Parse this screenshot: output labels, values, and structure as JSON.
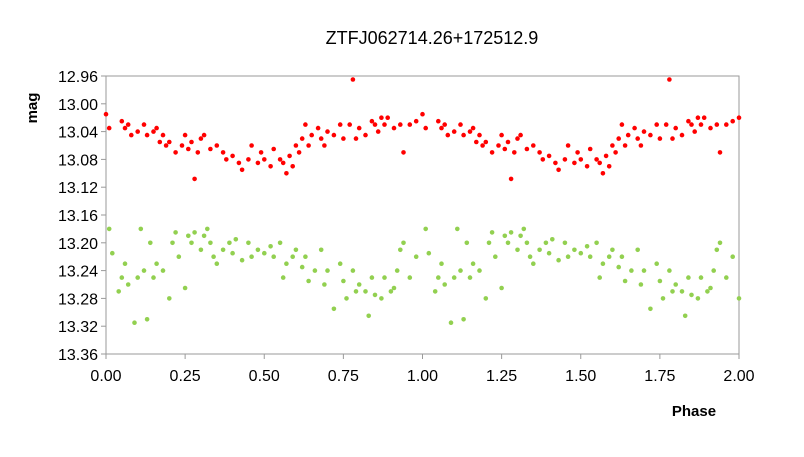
{
  "chart_data": {
    "type": "scatter",
    "title": "ZTFJ062714.26+172512.9",
    "xlabel": "Phase",
    "ylabel": "mag",
    "xlim": [
      0.0,
      2.0
    ],
    "ylim": [
      12.96,
      13.36
    ],
    "y_inverted": true,
    "grid": false,
    "legend": "none",
    "x_ticks": [
      "0.00",
      "0.25",
      "0.50",
      "0.75",
      "1.00",
      "1.25",
      "1.50",
      "1.75",
      "2.00"
    ],
    "y_ticks": [
      "12.96",
      "13.00",
      "13.04",
      "13.08",
      "13.12",
      "13.16",
      "13.20",
      "13.24",
      "13.28",
      "13.32",
      "13.36"
    ],
    "x_tick_values": [
      0.0,
      0.25,
      0.5,
      0.75,
      1.0,
      1.25,
      1.5,
      1.75,
      2.0
    ],
    "y_tick_values": [
      12.96,
      13.0,
      13.04,
      13.08,
      13.12,
      13.16,
      13.2,
      13.24,
      13.28,
      13.32,
      13.36
    ],
    "series": [
      {
        "color": "#ff0000",
        "marker": "circle",
        "points": [
          [
            0.0,
            13.015
          ],
          [
            0.01,
            13.035
          ],
          [
            0.05,
            13.025
          ],
          [
            0.06,
            13.035
          ],
          [
            0.07,
            13.03
          ],
          [
            0.08,
            13.045
          ],
          [
            0.1,
            13.04
          ],
          [
            0.12,
            13.03
          ],
          [
            0.13,
            13.045
          ],
          [
            0.15,
            13.04
          ],
          [
            0.16,
            13.035
          ],
          [
            0.17,
            13.055
          ],
          [
            0.18,
            13.045
          ],
          [
            0.19,
            13.06
          ],
          [
            0.2,
            13.055
          ],
          [
            0.22,
            13.07
          ],
          [
            0.24,
            13.06
          ],
          [
            0.25,
            13.045
          ],
          [
            0.26,
            13.065
          ],
          [
            0.27,
            13.055
          ],
          [
            0.28,
            13.108
          ],
          [
            0.29,
            13.07
          ],
          [
            0.3,
            13.05
          ],
          [
            0.31,
            13.045
          ],
          [
            0.33,
            13.065
          ],
          [
            0.35,
            13.06
          ],
          [
            0.37,
            13.07
          ],
          [
            0.38,
            13.08
          ],
          [
            0.4,
            13.075
          ],
          [
            0.42,
            13.085
          ],
          [
            0.43,
            13.095
          ],
          [
            0.45,
            13.08
          ],
          [
            0.46,
            13.06
          ],
          [
            0.48,
            13.085
          ],
          [
            0.49,
            13.07
          ],
          [
            0.5,
            13.08
          ],
          [
            0.52,
            13.09
          ],
          [
            0.53,
            13.065
          ],
          [
            0.55,
            13.08
          ],
          [
            0.56,
            13.085
          ],
          [
            0.57,
            13.1
          ],
          [
            0.58,
            13.075
          ],
          [
            0.59,
            13.09
          ],
          [
            0.6,
            13.06
          ],
          [
            0.61,
            13.07
          ],
          [
            0.62,
            13.05
          ],
          [
            0.63,
            13.03
          ],
          [
            0.64,
            13.06
          ],
          [
            0.65,
            13.045
          ],
          [
            0.67,
            13.035
          ],
          [
            0.68,
            13.05
          ],
          [
            0.69,
            13.06
          ],
          [
            0.7,
            13.04
          ],
          [
            0.72,
            13.045
          ],
          [
            0.74,
            13.03
          ],
          [
            0.75,
            13.05
          ],
          [
            0.77,
            13.03
          ],
          [
            0.78,
            12.965
          ],
          [
            0.79,
            13.05
          ],
          [
            0.8,
            13.035
          ],
          [
            0.82,
            13.045
          ],
          [
            0.84,
            13.025
          ],
          [
            0.85,
            13.03
          ],
          [
            0.86,
            13.04
          ],
          [
            0.87,
            13.02
          ],
          [
            0.88,
            13.03
          ],
          [
            0.89,
            13.02
          ],
          [
            0.91,
            13.035
          ],
          [
            0.93,
            13.03
          ],
          [
            0.94,
            13.07
          ],
          [
            0.96,
            13.03
          ],
          [
            0.98,
            13.025
          ],
          [
            1.0,
            13.015
          ],
          [
            1.01,
            13.035
          ],
          [
            1.05,
            13.025
          ],
          [
            1.06,
            13.035
          ],
          [
            1.07,
            13.03
          ],
          [
            1.08,
            13.045
          ],
          [
            1.1,
            13.04
          ],
          [
            1.12,
            13.03
          ],
          [
            1.13,
            13.045
          ],
          [
            1.15,
            13.04
          ],
          [
            1.16,
            13.035
          ],
          [
            1.17,
            13.055
          ],
          [
            1.18,
            13.045
          ],
          [
            1.19,
            13.06
          ],
          [
            1.2,
            13.055
          ],
          [
            1.22,
            13.07
          ],
          [
            1.24,
            13.06
          ],
          [
            1.25,
            13.045
          ],
          [
            1.26,
            13.065
          ],
          [
            1.27,
            13.055
          ],
          [
            1.28,
            13.108
          ],
          [
            1.29,
            13.07
          ],
          [
            1.3,
            13.05
          ],
          [
            1.31,
            13.045
          ],
          [
            1.33,
            13.065
          ],
          [
            1.35,
            13.06
          ],
          [
            1.37,
            13.07
          ],
          [
            1.38,
            13.08
          ],
          [
            1.4,
            13.075
          ],
          [
            1.42,
            13.085
          ],
          [
            1.43,
            13.095
          ],
          [
            1.45,
            13.08
          ],
          [
            1.46,
            13.06
          ],
          [
            1.48,
            13.085
          ],
          [
            1.49,
            13.07
          ],
          [
            1.5,
            13.08
          ],
          [
            1.52,
            13.09
          ],
          [
            1.53,
            13.065
          ],
          [
            1.55,
            13.08
          ],
          [
            1.56,
            13.085
          ],
          [
            1.57,
            13.1
          ],
          [
            1.58,
            13.075
          ],
          [
            1.59,
            13.09
          ],
          [
            1.6,
            13.06
          ],
          [
            1.61,
            13.07
          ],
          [
            1.62,
            13.05
          ],
          [
            1.63,
            13.03
          ],
          [
            1.64,
            13.06
          ],
          [
            1.65,
            13.045
          ],
          [
            1.67,
            13.035
          ],
          [
            1.68,
            13.05
          ],
          [
            1.69,
            13.06
          ],
          [
            1.7,
            13.04
          ],
          [
            1.72,
            13.045
          ],
          [
            1.74,
            13.03
          ],
          [
            1.75,
            13.05
          ],
          [
            1.77,
            13.03
          ],
          [
            1.78,
            12.965
          ],
          [
            1.79,
            13.05
          ],
          [
            1.8,
            13.035
          ],
          [
            1.82,
            13.045
          ],
          [
            1.84,
            13.025
          ],
          [
            1.85,
            13.03
          ],
          [
            1.86,
            13.04
          ],
          [
            1.87,
            13.02
          ],
          [
            1.88,
            13.03
          ],
          [
            1.89,
            13.02
          ],
          [
            1.91,
            13.035
          ],
          [
            1.93,
            13.03
          ],
          [
            1.94,
            13.07
          ],
          [
            1.96,
            13.03
          ],
          [
            1.98,
            13.025
          ],
          [
            2.0,
            13.02
          ]
        ]
      },
      {
        "color": "#92d050",
        "marker": "circle",
        "points": [
          [
            0.01,
            13.18
          ],
          [
            0.02,
            13.215
          ],
          [
            0.04,
            13.27
          ],
          [
            0.05,
            13.25
          ],
          [
            0.06,
            13.23
          ],
          [
            0.07,
            13.26
          ],
          [
            0.09,
            13.315
          ],
          [
            0.1,
            13.25
          ],
          [
            0.11,
            13.18
          ],
          [
            0.12,
            13.24
          ],
          [
            0.13,
            13.31
          ],
          [
            0.14,
            13.2
          ],
          [
            0.15,
            13.25
          ],
          [
            0.16,
            13.23
          ],
          [
            0.18,
            13.24
          ],
          [
            0.2,
            13.28
          ],
          [
            0.21,
            13.2
          ],
          [
            0.22,
            13.185
          ],
          [
            0.23,
            13.22
          ],
          [
            0.25,
            13.265
          ],
          [
            0.26,
            13.19
          ],
          [
            0.27,
            13.2
          ],
          [
            0.28,
            13.185
          ],
          [
            0.3,
            13.21
          ],
          [
            0.31,
            13.19
          ],
          [
            0.32,
            13.18
          ],
          [
            0.33,
            13.2
          ],
          [
            0.34,
            13.22
          ],
          [
            0.35,
            13.23
          ],
          [
            0.37,
            13.21
          ],
          [
            0.39,
            13.2
          ],
          [
            0.4,
            13.215
          ],
          [
            0.41,
            13.195
          ],
          [
            0.43,
            13.225
          ],
          [
            0.45,
            13.2
          ],
          [
            0.46,
            13.22
          ],
          [
            0.48,
            13.21
          ],
          [
            0.5,
            13.215
          ],
          [
            0.52,
            13.205
          ],
          [
            0.53,
            13.22
          ],
          [
            0.55,
            13.2
          ],
          [
            0.56,
            13.25
          ],
          [
            0.57,
            13.23
          ],
          [
            0.59,
            13.22
          ],
          [
            0.6,
            13.21
          ],
          [
            0.62,
            13.235
          ],
          [
            0.63,
            13.22
          ],
          [
            0.64,
            13.255
          ],
          [
            0.66,
            13.24
          ],
          [
            0.68,
            13.21
          ],
          [
            0.69,
            13.26
          ],
          [
            0.7,
            13.24
          ],
          [
            0.72,
            13.295
          ],
          [
            0.74,
            13.23
          ],
          [
            0.75,
            13.255
          ],
          [
            0.76,
            13.28
          ],
          [
            0.78,
            13.24
          ],
          [
            0.79,
            13.27
          ],
          [
            0.8,
            13.26
          ],
          [
            0.82,
            13.27
          ],
          [
            0.83,
            13.305
          ],
          [
            0.84,
            13.25
          ],
          [
            0.85,
            13.275
          ],
          [
            0.87,
            13.28
          ],
          [
            0.88,
            13.25
          ],
          [
            0.9,
            13.27
          ],
          [
            0.91,
            13.265
          ],
          [
            0.92,
            13.24
          ],
          [
            0.93,
            13.21
          ],
          [
            0.94,
            13.2
          ],
          [
            0.96,
            13.25
          ],
          [
            0.98,
            13.22
          ],
          [
            1.01,
            13.18
          ],
          [
            1.02,
            13.215
          ],
          [
            1.04,
            13.27
          ],
          [
            1.05,
            13.25
          ],
          [
            1.06,
            13.23
          ],
          [
            1.07,
            13.26
          ],
          [
            1.09,
            13.315
          ],
          [
            1.1,
            13.25
          ],
          [
            1.11,
            13.18
          ],
          [
            1.12,
            13.24
          ],
          [
            1.13,
            13.31
          ],
          [
            1.14,
            13.2
          ],
          [
            1.15,
            13.25
          ],
          [
            1.16,
            13.23
          ],
          [
            1.18,
            13.24
          ],
          [
            1.2,
            13.28
          ],
          [
            1.21,
            13.2
          ],
          [
            1.22,
            13.185
          ],
          [
            1.23,
            13.22
          ],
          [
            1.25,
            13.265
          ],
          [
            1.26,
            13.19
          ],
          [
            1.27,
            13.2
          ],
          [
            1.28,
            13.185
          ],
          [
            1.3,
            13.21
          ],
          [
            1.31,
            13.19
          ],
          [
            1.32,
            13.18
          ],
          [
            1.33,
            13.2
          ],
          [
            1.34,
            13.22
          ],
          [
            1.35,
            13.23
          ],
          [
            1.37,
            13.21
          ],
          [
            1.39,
            13.2
          ],
          [
            1.4,
            13.215
          ],
          [
            1.41,
            13.195
          ],
          [
            1.43,
            13.225
          ],
          [
            1.45,
            13.2
          ],
          [
            1.46,
            13.22
          ],
          [
            1.48,
            13.21
          ],
          [
            1.5,
            13.215
          ],
          [
            1.52,
            13.205
          ],
          [
            1.53,
            13.22
          ],
          [
            1.55,
            13.2
          ],
          [
            1.56,
            13.25
          ],
          [
            1.57,
            13.23
          ],
          [
            1.59,
            13.22
          ],
          [
            1.6,
            13.21
          ],
          [
            1.62,
            13.235
          ],
          [
            1.63,
            13.22
          ],
          [
            1.64,
            13.255
          ],
          [
            1.66,
            13.24
          ],
          [
            1.68,
            13.21
          ],
          [
            1.69,
            13.26
          ],
          [
            1.7,
            13.24
          ],
          [
            1.72,
            13.295
          ],
          [
            1.74,
            13.23
          ],
          [
            1.75,
            13.255
          ],
          [
            1.76,
            13.28
          ],
          [
            1.78,
            13.24
          ],
          [
            1.79,
            13.27
          ],
          [
            1.8,
            13.26
          ],
          [
            1.82,
            13.27
          ],
          [
            1.83,
            13.305
          ],
          [
            1.84,
            13.25
          ],
          [
            1.85,
            13.275
          ],
          [
            1.87,
            13.28
          ],
          [
            1.88,
            13.25
          ],
          [
            1.9,
            13.27
          ],
          [
            1.91,
            13.265
          ],
          [
            1.92,
            13.24
          ],
          [
            1.93,
            13.21
          ],
          [
            1.94,
            13.2
          ],
          [
            1.96,
            13.25
          ],
          [
            1.98,
            13.22
          ],
          [
            2.0,
            13.28
          ]
        ]
      }
    ]
  }
}
